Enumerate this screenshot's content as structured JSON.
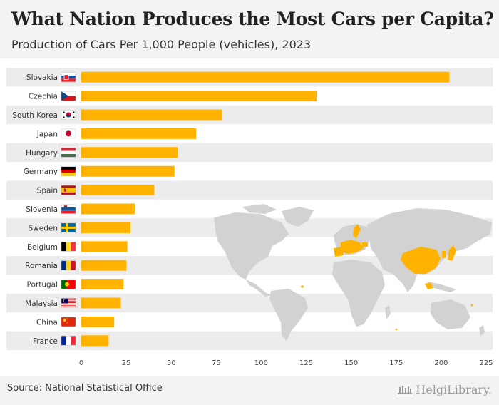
{
  "header": {
    "title": "What Nation Produces the Most Cars per Capita?",
    "subtitle": "Production of Cars Per 1,000 People (vehicles), 2023"
  },
  "footer": {
    "source": "Source: National Statistical Office",
    "brand": "HelgiLibrary."
  },
  "colors": {
    "bar": "#FFB300",
    "row_stripe": "#ececec",
    "map_land": "#d2d2d2",
    "map_highlight": "#FFB300"
  },
  "chart_data": {
    "type": "bar",
    "orientation": "horizontal",
    "title": "What Nation Produces the Most Cars per Capita?",
    "subtitle": "Production of Cars Per 1,000 People (vehicles), 2023",
    "categories": [
      "Slovakia",
      "Czechia",
      "South Korea",
      "Japan",
      "Hungary",
      "Germany",
      "Spain",
      "Slovenia",
      "Sweden",
      "Belgium",
      "Romania",
      "Portugal",
      "Malaysia",
      "China",
      "France"
    ],
    "values": [
      204.6,
      130.8,
      78.3,
      63.8,
      53.5,
      51.8,
      40.6,
      29.7,
      27.3,
      25.6,
      25.1,
      23.5,
      22.0,
      18.3,
      15.2
    ],
    "xlim": [
      0,
      225
    ],
    "xticks": [
      0,
      25,
      50,
      75,
      100,
      125,
      150,
      175,
      200,
      225
    ],
    "xlabel": "",
    "ylabel": "",
    "grid": false,
    "flags": [
      "flag-slovakia-icon",
      "flag-czechia-icon",
      "flag-south-korea-icon",
      "flag-japan-icon",
      "flag-hungary-icon",
      "flag-germany-icon",
      "flag-spain-icon",
      "flag-slovenia-icon",
      "flag-sweden-icon",
      "flag-belgium-icon",
      "flag-romania-icon",
      "flag-portugal-icon",
      "flag-malaysia-icon",
      "flag-china-icon",
      "flag-france-icon"
    ]
  }
}
